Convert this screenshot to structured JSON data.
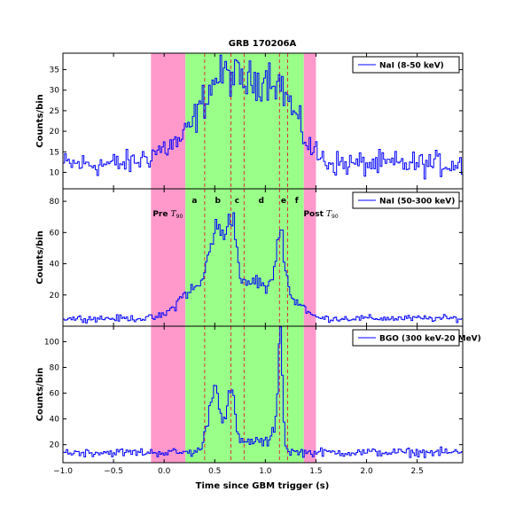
{
  "chart_data": {
    "type": "line",
    "subtype": "step-histogram (3 stacked panels, shared x axis)",
    "title": "GRB 170206A",
    "xlabel": "Time since GBM trigger (s)",
    "xlim": [
      -1.0,
      2.95
    ],
    "xticks": [
      -1.0,
      -0.5,
      0.0,
      0.5,
      1.0,
      1.5,
      2.0,
      2.5
    ],
    "xtick_labels": [
      "−1.0",
      "−0.5",
      "0.0",
      "0.5",
      "1.0",
      "1.5",
      "2.0",
      "2.5"
    ],
    "bin_width": 0.016,
    "series_color": "#0000ff",
    "shaded_regions": [
      {
        "name": "Pre T90",
        "label_prefix": "Pre",
        "label_symbol": "T",
        "label_sub": "90",
        "range": [
          -0.13,
          0.21
        ],
        "color": "#ff99cc"
      },
      {
        "name": "T90",
        "range": [
          0.21,
          1.38
        ],
        "color": "#99ff88"
      },
      {
        "name": "Post T90",
        "label_prefix": "Post",
        "label_symbol": "T",
        "label_sub": "90",
        "range": [
          1.38,
          1.5
        ],
        "color": "#ff99cc"
      }
    ],
    "interval_boundaries": [
      0.4,
      0.66,
      0.79,
      1.14,
      1.22
    ],
    "interval_color": "#dd3333",
    "interval_labels": [
      {
        "label": "a",
        "x": 0.3
      },
      {
        "label": "b",
        "x": 0.53
      },
      {
        "label": "c",
        "x": 0.72
      },
      {
        "label": "d",
        "x": 0.96
      },
      {
        "label": "e",
        "x": 1.18
      },
      {
        "label": "f",
        "x": 1.31
      }
    ],
    "panels": [
      {
        "name": "NaI (8-50 keV)",
        "ylabel": "Counts/bin",
        "ylim": [
          6,
          39
        ],
        "yticks": [
          10,
          15,
          20,
          25,
          30,
          35
        ],
        "legend": "NaI (8-50 keV)",
        "legend_position": "top-right",
        "profile": {
          "background": 12,
          "noise": 2.6,
          "components": [
            {
              "center": 0.55,
              "width": 0.22,
              "amp": 17
            },
            {
              "center": 1.1,
              "width": 0.2,
              "amp": 16
            },
            {
              "center": 0.82,
              "width": 0.3,
              "amp": 6
            },
            {
              "center": 0.0,
              "width": 0.16,
              "amp": 3
            }
          ]
        }
      },
      {
        "name": "NaI (50-300 keV)",
        "ylabel": "Counts/bin",
        "ylim": [
          0,
          88
        ],
        "yticks": [
          20,
          40,
          60,
          80
        ],
        "legend": "NaI (50-300 keV)",
        "legend_position": "top-right",
        "profile": {
          "background": 5,
          "noise": 1.8,
          "components": [
            {
              "center": 0.52,
              "width": 0.08,
              "amp": 52
            },
            {
              "center": 0.67,
              "width": 0.05,
              "amp": 50
            },
            {
              "center": 0.9,
              "width": 0.15,
              "amp": 24
            },
            {
              "center": 1.15,
              "width": 0.05,
              "amp": 48
            },
            {
              "center": 0.28,
              "width": 0.14,
              "amp": 18
            },
            {
              "center": 1.32,
              "width": 0.08,
              "amp": 10
            }
          ]
        }
      },
      {
        "name": "BGO (300 keV-20 MeV)",
        "ylabel": "Counts/bin",
        "ylim": [
          6,
          112
        ],
        "yticks": [
          20,
          40,
          60,
          80,
          100
        ],
        "legend": "BGO (300 keV-20 MeV)",
        "legend_position": "top-right",
        "profile": {
          "background": 14,
          "noise": 2.8,
          "components": [
            {
              "center": 0.5,
              "width": 0.06,
              "amp": 50
            },
            {
              "center": 0.66,
              "width": 0.04,
              "amp": 44
            },
            {
              "center": 0.9,
              "width": 0.15,
              "amp": 9
            },
            {
              "center": 1.15,
              "width": 0.018,
              "amp": 88
            },
            {
              "center": 1.12,
              "width": 0.04,
              "amp": 22
            }
          ]
        }
      }
    ]
  }
}
